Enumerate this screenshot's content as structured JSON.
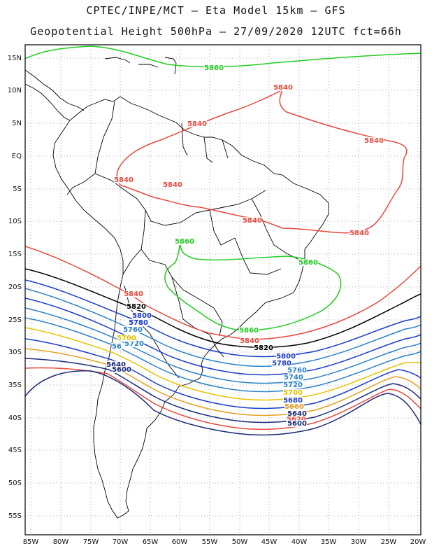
{
  "header": {
    "line1": "CPTEC/INPE/MCT –  Eta Model 15km – GFS",
    "line2": "Geopotential Height 500hPa – 27/09/2020 12UTC fct=66h"
  },
  "map": {
    "lat_labels": [
      "15N",
      "10N",
      "5N",
      "EQ",
      "5S",
      "10S",
      "15S",
      "20S",
      "25S",
      "30S",
      "35S",
      "40S",
      "45S",
      "50S",
      "55S"
    ],
    "lon_labels": [
      "85W",
      "80W",
      "75W",
      "70W",
      "65W",
      "60W",
      "55W",
      "50W",
      "45W",
      "40W",
      "35W",
      "30W",
      "25W",
      "20W"
    ],
    "contour_labels": [
      {
        "text": "5860",
        "color": "#22cc22"
      },
      {
        "text": "5840",
        "color": "#e84a3c"
      },
      {
        "text": "5840",
        "color": "#e84a3c"
      },
      {
        "text": "5840",
        "color": "#e84a3c"
      },
      {
        "text": "5840",
        "color": "#e84a3c"
      },
      {
        "text": "5840",
        "color": "#e84a3c"
      },
      {
        "text": "5840",
        "color": "#e84a3c"
      },
      {
        "text": "5840",
        "color": "#e84a3c"
      },
      {
        "text": "5860",
        "color": "#22cc22"
      },
      {
        "text": "5860",
        "color": "#22cc22"
      },
      {
        "text": "5860",
        "color": "#22cc22"
      },
      {
        "text": "5840",
        "color": "#e84a3c"
      },
      {
        "text": "5820",
        "color": "#000000"
      },
      {
        "text": "5800",
        "color": "#1a3cc8"
      },
      {
        "text": "5780",
        "color": "#1a3cc8"
      },
      {
        "text": "5760",
        "color": "#2a82c8"
      },
      {
        "text": "56",
        "color": "#2a82c8"
      },
      {
        "text": "5720",
        "color": "#2a82c8"
      },
      {
        "text": "5700",
        "color": "#e6c300"
      },
      {
        "text": "5640",
        "color": "#1a2a7a"
      },
      {
        "text": "5600",
        "color": "#1a2a7a"
      },
      {
        "text": "5840",
        "color": "#e84a3c"
      },
      {
        "text": "5820",
        "color": "#000000"
      },
      {
        "text": "5800",
        "color": "#1a3cc8"
      },
      {
        "text": "5780",
        "color": "#1a3cc8"
      },
      {
        "text": "5760",
        "color": "#2a82c8"
      },
      {
        "text": "5740",
        "color": "#2a82c8"
      },
      {
        "text": "5720",
        "color": "#2a82c8"
      },
      {
        "text": "5700",
        "color": "#e6c300"
      },
      {
        "text": "5680",
        "color": "#1a3cc8"
      },
      {
        "text": "5660",
        "color": "#e6a020"
      },
      {
        "text": "5640",
        "color": "#1a2a7a"
      },
      {
        "text": "5620",
        "color": "#e84a3c"
      },
      {
        "text": "5600",
        "color": "#1a2a7a"
      }
    ]
  }
}
